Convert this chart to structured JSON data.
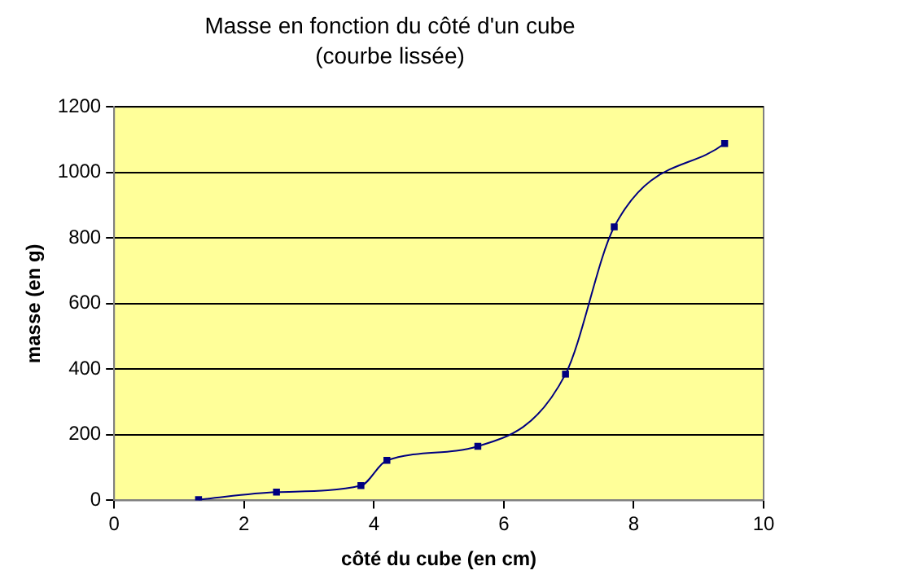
{
  "chart_data": {
    "type": "line",
    "title": "Masse en fonction du côté d'un cube",
    "subtitle": "(courbe lissée)",
    "xlabel": "côté du cube (en cm)",
    "ylabel": "masse (en g)",
    "x": [
      1.3,
      2.5,
      3.8,
      4.2,
      5.6,
      6.95,
      7.7,
      9.4
    ],
    "series": [
      {
        "color": "#000080",
        "values": [
          2,
          25,
          45,
          122,
          165,
          385,
          834,
          1088
        ]
      }
    ],
    "xlim": [
      0,
      10
    ],
    "xticks": [
      0,
      2,
      4,
      6,
      8,
      10
    ],
    "ylim": [
      0,
      1200
    ],
    "yticks": [
      0,
      200,
      400,
      600,
      800,
      1000,
      1200
    ],
    "grid": "y",
    "legend": false,
    "marker": "square",
    "line_style": "solid"
  }
}
